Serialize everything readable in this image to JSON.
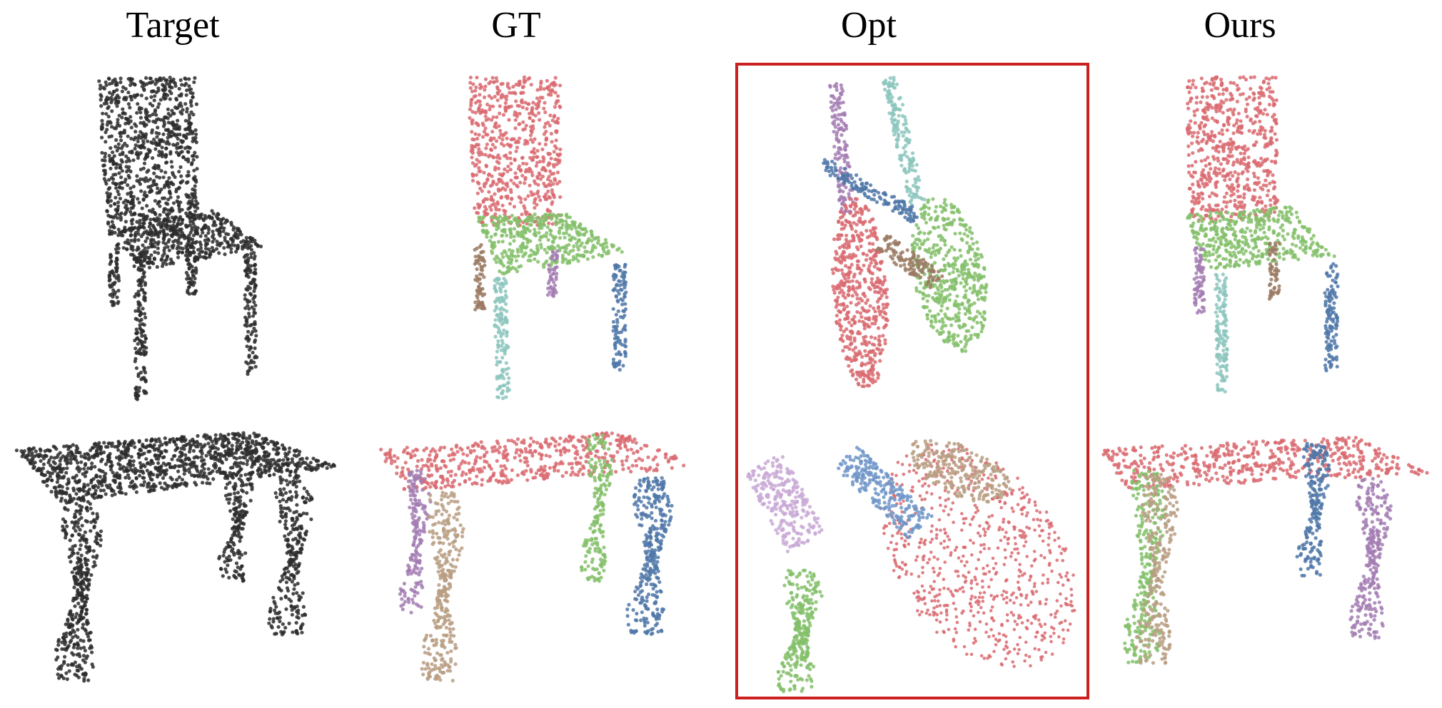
{
  "columns": [
    {
      "title": "Target"
    },
    {
      "title": "GT"
    },
    {
      "title": "Opt"
    },
    {
      "title": "Ours"
    }
  ],
  "rows": [
    "chair",
    "table"
  ],
  "colors": {
    "target": "#2b2b2b",
    "back_top": "#d96a70",
    "seat": "#84c06a",
    "leg_teal": "#8cc5bd",
    "leg_blue": "#4f77a8",
    "leg_brown": "#9a7a63",
    "leg_purple": "#a37cb3",
    "leg_tan": "#b99e83",
    "leg_lilac": "#c9a9d6",
    "leg_lightblue": "#6f95c8",
    "highlight_box": "#cc1f1f"
  }
}
